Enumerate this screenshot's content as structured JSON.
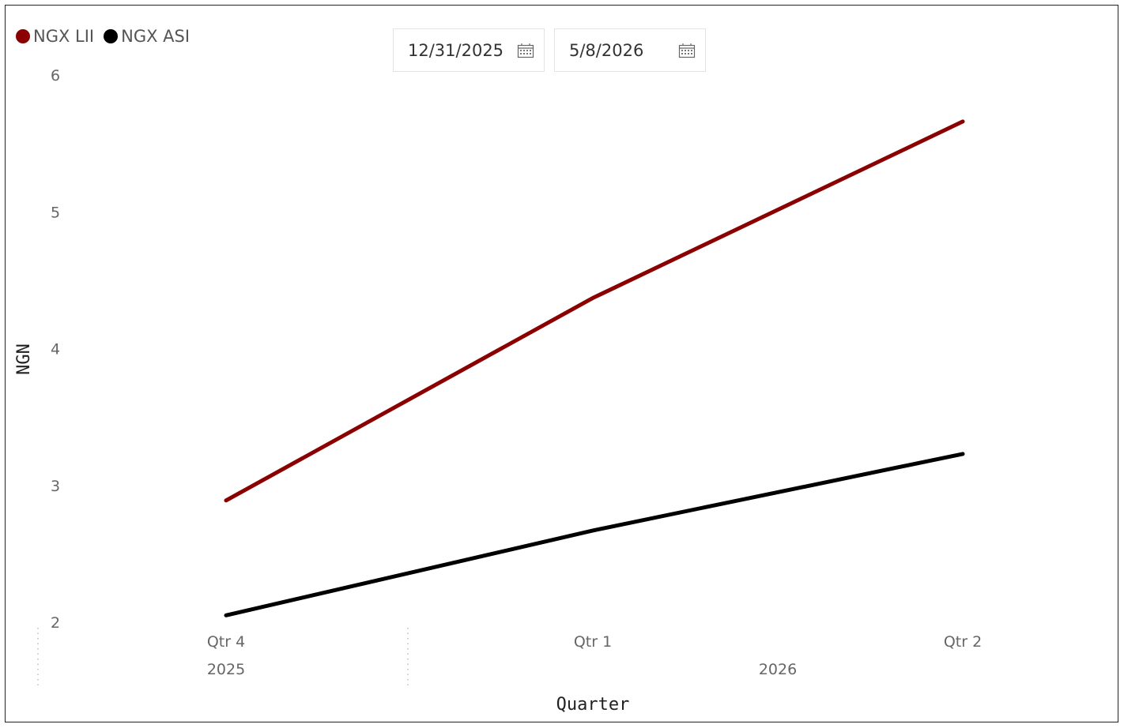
{
  "legend": [
    {
      "label": "NGX LII",
      "color": "#8B0000"
    },
    {
      "label": "NGX ASI",
      "color": "#000000"
    }
  ],
  "date_range": {
    "start": "12/31/2025",
    "end": "5/8/2026",
    "icon": "calendar-icon"
  },
  "chart_data": {
    "type": "line",
    "x": [
      "Qtr 4",
      "Qtr 1",
      "Qtr 2"
    ],
    "x_groups": [
      {
        "label": "2025",
        "start": 0,
        "end": 0
      },
      {
        "label": "2026",
        "start": 1,
        "end": 2
      }
    ],
    "series": [
      {
        "name": "NGX LII",
        "color": "#8B0000",
        "values": [
          2.89,
          4.37,
          5.66
        ]
      },
      {
        "name": "NGX ASI",
        "color": "#000000",
        "values": [
          2.05,
          2.67,
          3.23
        ]
      }
    ],
    "yticks": [
      "2",
      "3",
      "4",
      "5",
      "6"
    ],
    "ylim": [
      2,
      6
    ],
    "xlabel": "Quarter",
    "ylabel": "NGN",
    "grid": false,
    "legend_position": "top-left"
  }
}
